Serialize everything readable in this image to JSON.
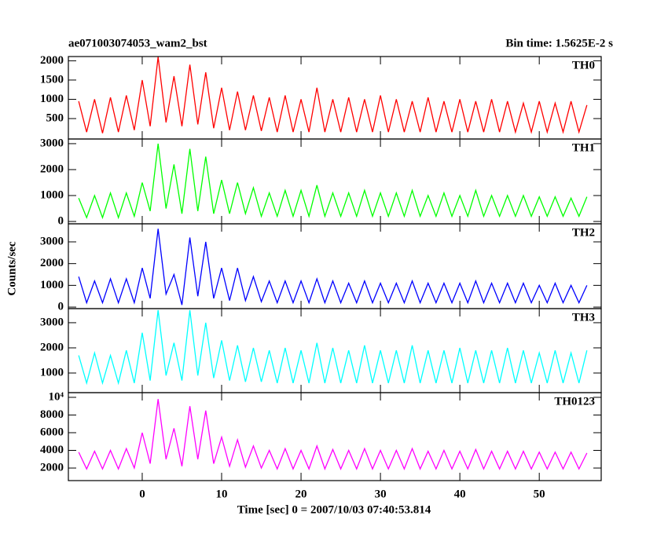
{
  "chart_data": {
    "type": "line",
    "title": "ae071003074053_wam2_bst",
    "subtitle": "Bin time: 1.5625E-2 s",
    "xlabel": "Time [sec] 0 = 2007/10/03 07:40:53.814",
    "ylabel": "Counts/sec",
    "xlim": [
      -9.3,
      57.8
    ],
    "xticks": [
      0,
      10,
      20,
      30,
      40,
      50
    ],
    "x": [
      -8,
      -7,
      -6,
      -5,
      -4,
      -3,
      -2,
      -1,
      0,
      1,
      2,
      3,
      4,
      5,
      6,
      7,
      8,
      9,
      10,
      11,
      12,
      13,
      14,
      15,
      16,
      17,
      18,
      19,
      20,
      21,
      22,
      23,
      24,
      25,
      26,
      27,
      28,
      29,
      30,
      31,
      32,
      33,
      34,
      35,
      36,
      37,
      38,
      39,
      40,
      41,
      42,
      43,
      44,
      45,
      46,
      47,
      48,
      49,
      50,
      51,
      52,
      53,
      54,
      55,
      56
    ],
    "series": [
      {
        "name": "TH0",
        "color": "#ff0000",
        "ylim": [
          -30,
          2110
        ],
        "yticks": [
          500,
          1000,
          1500,
          2000
        ],
        "values": [
          950,
          150,
          1000,
          120,
          1050,
          150,
          1100,
          200,
          1500,
          300,
          2100,
          400,
          1600,
          300,
          1900,
          350,
          1700,
          250,
          1300,
          200,
          1200,
          200,
          1100,
          180,
          1050,
          150,
          1100,
          150,
          1000,
          150,
          1300,
          150,
          1000,
          150,
          1050,
          150,
          1000,
          150,
          1100,
          150,
          1000,
          150,
          950,
          150,
          1050,
          150,
          950,
          150,
          1000,
          150,
          950,
          150,
          1000,
          150,
          950,
          150,
          900,
          150,
          950,
          150,
          900,
          150,
          950,
          150,
          850
        ]
      },
      {
        "name": "TH1",
        "color": "#00ff00",
        "ylim": [
          -90,
          3180
        ],
        "yticks": [
          0,
          1000,
          2000,
          3000
        ],
        "values": [
          900,
          150,
          1000,
          150,
          1100,
          150,
          1100,
          200,
          1500,
          400,
          3000,
          500,
          2200,
          300,
          2800,
          400,
          2500,
          300,
          1600,
          300,
          1500,
          300,
          1300,
          200,
          1100,
          200,
          1200,
          200,
          1200,
          200,
          1400,
          200,
          1100,
          200,
          1100,
          200,
          1200,
          200,
          1100,
          200,
          1100,
          200,
          1200,
          200,
          1000,
          200,
          1100,
          200,
          1000,
          200,
          1200,
          200,
          1000,
          200,
          1000,
          200,
          1000,
          200,
          950,
          200,
          950,
          200,
          900,
          200,
          950
        ]
      },
      {
        "name": "TH2",
        "color": "#0000ff",
        "ylim": [
          -70,
          3830
        ],
        "yticks": [
          0,
          1000,
          2000,
          3000
        ],
        "values": [
          1400,
          200,
          1200,
          200,
          1300,
          200,
          1300,
          200,
          1800,
          400,
          3600,
          600,
          1500,
          100,
          3200,
          500,
          3000,
          400,
          1800,
          300,
          1800,
          300,
          1400,
          250,
          1200,
          200,
          1200,
          200,
          1200,
          200,
          1300,
          200,
          1200,
          200,
          1100,
          200,
          1200,
          200,
          1100,
          200,
          1100,
          200,
          1200,
          200,
          1100,
          200,
          1100,
          200,
          1100,
          200,
          1200,
          200,
          1100,
          200,
          1100,
          200,
          1100,
          200,
          1000,
          200,
          1100,
          200,
          1000,
          200,
          1000
        ]
      },
      {
        "name": "TH3",
        "color": "#00ffff",
        "ylim": [
          220,
          3560
        ],
        "yticks": [
          1000,
          2000,
          3000
        ],
        "values": [
          1700,
          600,
          1800,
          600,
          1700,
          600,
          1900,
          600,
          2600,
          700,
          3500,
          900,
          2200,
          700,
          3500,
          900,
          3000,
          800,
          2300,
          700,
          2100,
          650,
          2000,
          650,
          1900,
          600,
          2000,
          600,
          1900,
          600,
          2200,
          600,
          2000,
          600,
          1900,
          600,
          2100,
          600,
          1900,
          600,
          1900,
          600,
          2100,
          600,
          1900,
          600,
          1900,
          600,
          2000,
          600,
          1900,
          600,
          1900,
          600,
          2000,
          600,
          1900,
          600,
          1800,
          600,
          1900,
          600,
          1800,
          600,
          1900
        ]
      },
      {
        "name": "TH0123",
        "color": "#ff00ff",
        "ylim": [
          580,
          10530
        ],
        "yticks": [
          2000,
          4000,
          6000,
          8000,
          {
            "value": 10000,
            "label": "10⁴"
          }
        ],
        "values": [
          3800,
          1900,
          3900,
          1900,
          4000,
          1900,
          4200,
          2000,
          6000,
          2500,
          9800,
          3000,
          6500,
          2200,
          9000,
          3000,
          8500,
          2500,
          5500,
          2200,
          5200,
          2100,
          4500,
          2000,
          4000,
          1900,
          4200,
          1900,
          4000,
          1900,
          4500,
          1900,
          4100,
          1900,
          4000,
          1900,
          4200,
          1900,
          4000,
          1900,
          4000,
          1900,
          4200,
          1900,
          3900,
          1900,
          4000,
          1900,
          3900,
          1900,
          4100,
          1900,
          3900,
          1900,
          3900,
          1900,
          3900,
          1900,
          3800,
          1900,
          3800,
          1900,
          3800,
          1900,
          3700
        ]
      }
    ]
  }
}
